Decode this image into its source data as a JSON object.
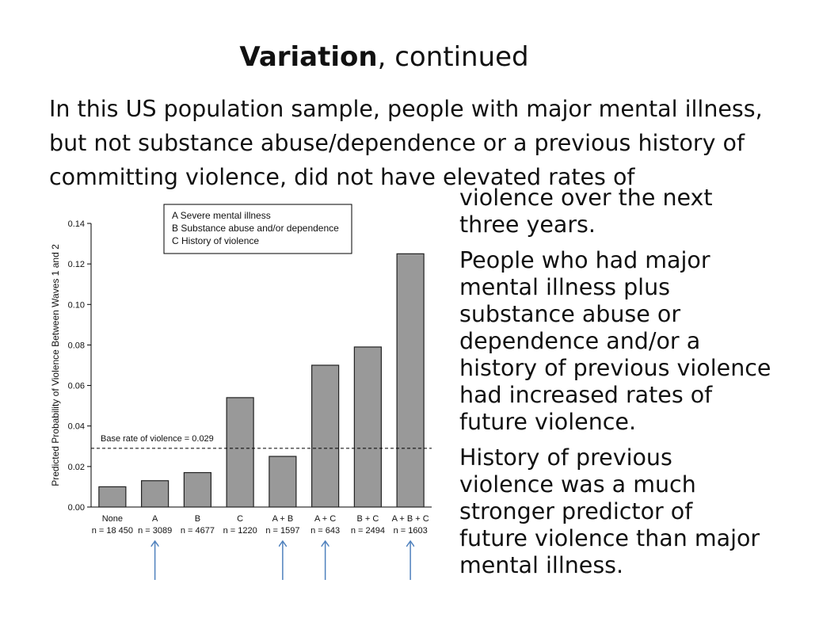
{
  "slide": {
    "title_bold": "Variation",
    "title_rest": ", continued",
    "intro": "In this US population sample, people with major mental illness, but not substance abuse/dependence or a previous history of committing violence, did not have elevated rates of",
    "side_1_line1": "violence over the next",
    "side_1_line2": "three years.",
    "side_2_lines": [
      "People who had major",
      "mental illness plus",
      "substance abuse or",
      "dependence and/or a",
      "history of previous violence",
      "had increased rates of",
      "future violence."
    ],
    "side_3_lines": [
      "History of previous",
      "violence was a much",
      "stronger predictor of",
      "future violence than major",
      "mental illness."
    ]
  },
  "chart_data": {
    "type": "bar",
    "categories": [
      "None",
      "A",
      "B",
      "C",
      "A + B",
      "A + C",
      "B + C",
      "A + B + C"
    ],
    "sample_sizes": [
      "n = 18 450",
      "n = 3089",
      "n = 4677",
      "n = 1220",
      "n = 1597",
      "n = 643",
      "n = 2494",
      "n = 1603"
    ],
    "values": [
      0.01,
      0.013,
      0.017,
      0.054,
      0.025,
      0.07,
      0.079,
      0.125
    ],
    "ylabel": "Predicted Probability of Violence Between Waves 1 and 2",
    "ylim": [
      0,
      0.14
    ],
    "yticks": [
      "0.00",
      "0.02",
      "0.04",
      "0.06",
      "0.08",
      "0.10",
      "0.12",
      "0.14"
    ],
    "baseline": {
      "value": 0.029,
      "label": "Base rate of violence = 0.029"
    },
    "legend": [
      "A  Severe mental illness",
      "B  Substance abuse and/or dependence",
      "C  History of violence"
    ],
    "legend_position": "top-center",
    "arrow_categories": [
      "A",
      "A + B",
      "A + C",
      "A + B + C"
    ],
    "bar_color": "#999999",
    "arrow_color": "#4f81bd",
    "grid": false
  }
}
